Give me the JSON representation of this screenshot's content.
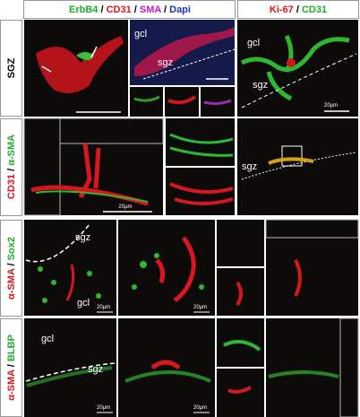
{
  "header": {
    "left": [
      {
        "text": "ErbB4",
        "color": "#1fae2a"
      },
      {
        "text": " / ",
        "color": "#000000"
      },
      {
        "text": "CD31",
        "color": "#e0141e"
      },
      {
        "text": " / ",
        "color": "#000000"
      },
      {
        "text": "SMA",
        "color": "#c21ec8"
      },
      {
        "text": " / ",
        "color": "#000000"
      },
      {
        "text": "Dapi",
        "color": "#1c2fd0"
      }
    ],
    "right": [
      {
        "text": "Ki-67",
        "color": "#e0141e"
      },
      {
        "text": " / ",
        "color": "#000000"
      },
      {
        "text": "CD31",
        "color": "#1fae2a"
      }
    ]
  },
  "rows": [
    {
      "label": [
        {
          "text": "SGZ",
          "color": "#000000"
        }
      ]
    },
    {
      "label": [
        {
          "text": "CD31",
          "color": "#e0141e"
        },
        {
          "text": " / ",
          "color": "#000000"
        },
        {
          "text": "α-SMA",
          "color": "#1fae2a"
        }
      ]
    },
    {
      "label": [
        {
          "text": "α-SMA",
          "color": "#e0141e"
        },
        {
          "text": " / ",
          "color": "#000000"
        },
        {
          "text": "Sox2",
          "color": "#1fae2a"
        }
      ]
    },
    {
      "label": [
        {
          "text": "α-SMA",
          "color": "#e0141e"
        },
        {
          "text": " / ",
          "color": "#000000"
        },
        {
          "text": "BLBP",
          "color": "#1fae2a"
        }
      ]
    }
  ],
  "annotations": {
    "row1": [
      "gcl",
      "sgz",
      "gcl",
      "sgz",
      "20μm"
    ],
    "row2": [
      "20μm",
      "sgz"
    ],
    "row3": [
      "sgz",
      "gcl",
      "20μm",
      "20μm"
    ],
    "row4": [
      "gcl",
      "sgz",
      "20μm",
      "20μm"
    ]
  }
}
